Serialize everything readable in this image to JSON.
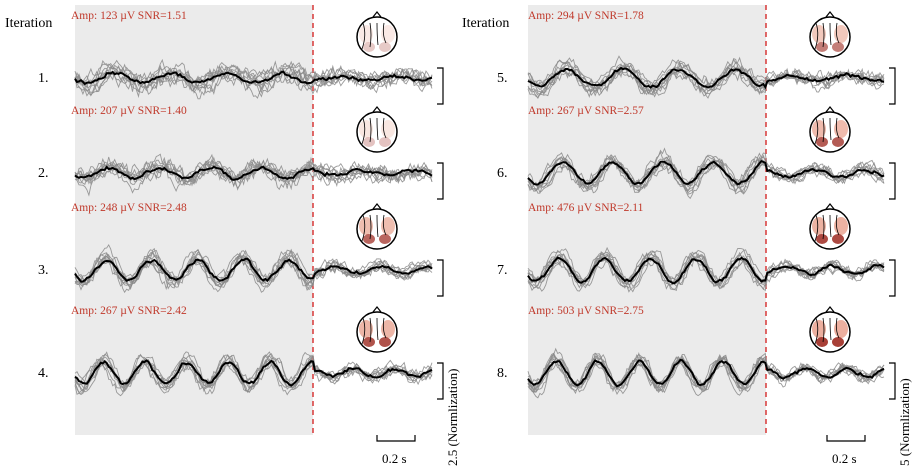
{
  "colors": {
    "shade": "#ebebeb",
    "onset_line": "#d62b2b",
    "annotation": "#c0392b",
    "trial_trace": "#8a8a8a",
    "mean_trace": "#000000",
    "axis_text": "#000000"
  },
  "chart_data": {
    "type": "line",
    "description_free": true,
    "panels": [
      {
        "heading": "Iteration",
        "iterations": [
          {
            "label": "1.",
            "amp": "Amp: 123 µV",
            "snr": "SNR=1.51",
            "topo_level": 0.1
          },
          {
            "label": "2.",
            "amp": "Amp: 207 µV",
            "snr": "SNR=1.40",
            "topo_level": 0.15
          },
          {
            "label": "3.",
            "amp": "Amp: 248 µV",
            "snr": "SNR=2.48",
            "topo_level": 0.7
          },
          {
            "label": "4.",
            "amp": "Amp: 267 µV",
            "snr": "SNR=2.42",
            "topo_level": 0.8
          }
        ],
        "time_scale_label": "0.2 s",
        "amplitude_scale_label": "2.5 (Normlization)"
      },
      {
        "heading": "Iteration",
        "iterations": [
          {
            "label": "5.",
            "amp": "Amp: 294 µV",
            "snr": "SNR=1.78",
            "topo_level": 0.55
          },
          {
            "label": "6.",
            "amp": "Amp: 267 µV",
            "snr": "SNR=2.57",
            "topo_level": 0.75
          },
          {
            "label": "7.",
            "amp": "Amp: 476 µV",
            "snr": "SNR=2.11",
            "topo_level": 0.85
          },
          {
            "label": "8.",
            "amp": "Amp: 503 µV",
            "snr": "SNR=2.75",
            "topo_level": 0.9
          }
        ],
        "time_scale_label": "0.2 s",
        "amplitude_scale_label": "5 (Normlization)"
      }
    ]
  }
}
